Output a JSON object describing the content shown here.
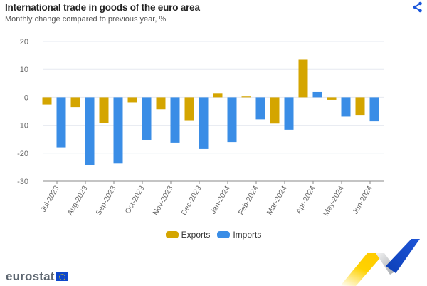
{
  "header": {
    "title": "International trade in goods of the euro area",
    "subtitle": "Monthly change compared to previous year, %",
    "share_icon": "share-icon"
  },
  "chart_data": {
    "type": "bar",
    "title": "International trade in goods of the euro area",
    "subtitle": "Monthly change compared to previous year, %",
    "xlabel": "",
    "ylabel": "",
    "ylim": [
      -30,
      20
    ],
    "yticks": [
      20,
      10,
      0,
      -10,
      -20,
      -30
    ],
    "grid": true,
    "legend_position": "bottom",
    "categories": [
      "Jul-2023",
      "Aug-2023",
      "Sep-2023",
      "Oct-2023",
      "Nov-2023",
      "Dec-2023",
      "Jan-2024",
      "Feb-2024",
      "Mar-2024",
      "Apr-2024",
      "May-2024",
      "Jun-2024"
    ],
    "series": [
      {
        "name": "Exports",
        "color": "#d4a500",
        "values": [
          -2.6,
          -3.5,
          -9.1,
          -1.8,
          -4.3,
          -8.2,
          1.3,
          0.3,
          -9.4,
          13.5,
          -0.9,
          -6.3
        ]
      },
      {
        "name": "Imports",
        "color": "#3a8de6",
        "values": [
          -17.9,
          -24.2,
          -23.7,
          -15.2,
          -16.2,
          -18.5,
          -16.0,
          -7.9,
          -11.6,
          1.9,
          -6.9,
          -8.6
        ]
      }
    ]
  },
  "legend": {
    "items": [
      {
        "label": "Exports",
        "color": "#d4a500"
      },
      {
        "label": "Imports",
        "color": "#3a8de6"
      }
    ]
  },
  "footer": {
    "logo_text": "eurostat",
    "flag_icon": "eu-flag-icon"
  }
}
